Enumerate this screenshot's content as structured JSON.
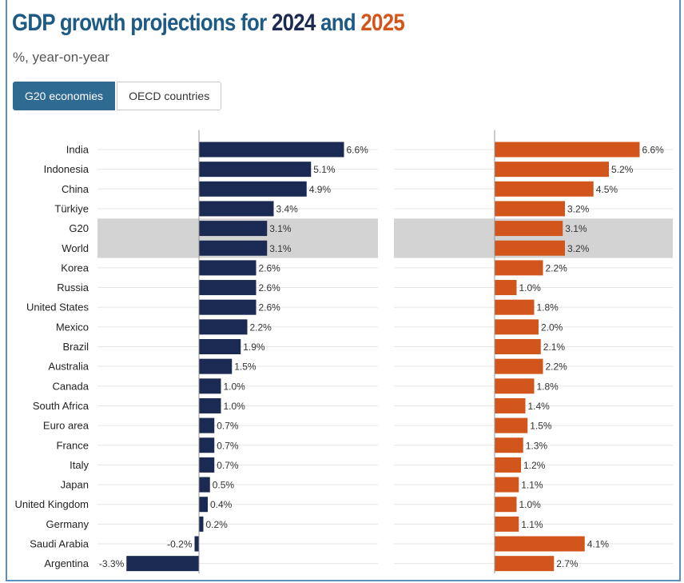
{
  "header": {
    "title_prefix": "GDP growth projections for ",
    "title_year1": "2024",
    "title_and": " and ",
    "title_year2": "2025",
    "subtitle": "%, year-on-year"
  },
  "tabs": [
    {
      "label": "G20 economies",
      "active": true
    },
    {
      "label": "OECD countries",
      "active": false
    }
  ],
  "colors": {
    "series_2024": "#1b2a52",
    "series_2025": "#d2561b",
    "highlight_band": "#d3d3d3",
    "grid": "#e6e6e6",
    "axis": "#999999"
  },
  "chart_data": {
    "type": "bar",
    "orientation": "horizontal",
    "categories": [
      "India",
      "Indonesia",
      "China",
      "Türkiye",
      "G20",
      "World",
      "Korea",
      "Russia",
      "United States",
      "Mexico",
      "Brazil",
      "Australia",
      "Canada",
      "South Africa",
      "Euro area",
      "France",
      "Italy",
      "Japan",
      "United Kingdom",
      "Germany",
      "Saudi Arabia",
      "Argentina"
    ],
    "highlighted_categories": [
      "G20",
      "World"
    ],
    "series": [
      {
        "name": "2024",
        "values": [
          6.6,
          5.1,
          4.9,
          3.4,
          3.1,
          3.1,
          2.6,
          2.6,
          2.6,
          2.2,
          1.9,
          1.5,
          1.0,
          1.0,
          0.7,
          0.7,
          0.7,
          0.5,
          0.4,
          0.2,
          -0.2,
          -3.3
        ]
      },
      {
        "name": "2025",
        "values": [
          6.6,
          5.2,
          4.5,
          3.2,
          3.1,
          3.2,
          2.2,
          1.0,
          1.8,
          2.0,
          2.1,
          2.2,
          1.8,
          1.4,
          1.5,
          1.3,
          1.2,
          1.1,
          1.0,
          1.1,
          4.1,
          2.7
        ]
      }
    ],
    "value_suffix": "%",
    "grid": true
  }
}
